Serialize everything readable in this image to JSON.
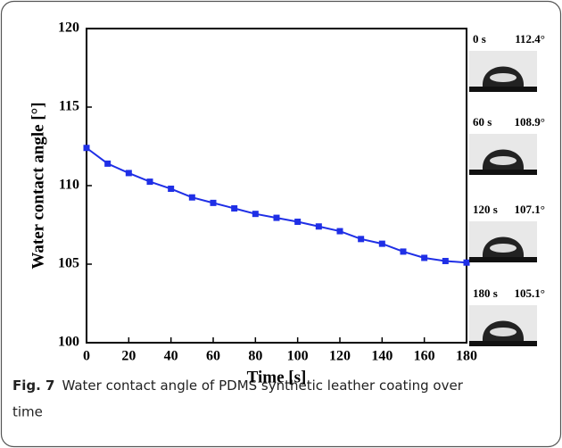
{
  "chart_data": {
    "type": "line",
    "x": [
      0,
      10,
      20,
      30,
      40,
      50,
      60,
      70,
      80,
      90,
      100,
      110,
      120,
      130,
      140,
      150,
      160,
      170,
      180
    ],
    "series": [
      {
        "color": "#1f2fe6",
        "values": [
          112.4,
          111.4,
          110.8,
          110.25,
          109.8,
          109.25,
          108.9,
          108.55,
          108.2,
          107.95,
          107.7,
          107.4,
          107.1,
          106.6,
          106.3,
          105.8,
          105.4,
          105.2,
          105.1
        ]
      }
    ],
    "xlim": [
      0,
      180
    ],
    "xticks": [
      0,
      20,
      40,
      60,
      80,
      100,
      120,
      140,
      160,
      180
    ],
    "ylim": [
      100,
      120
    ],
    "yticks": [
      100,
      105,
      110,
      115,
      120
    ],
    "xlabel": "Time [s]",
    "ylabel": "Water contact angle [°]",
    "insets": [
      {
        "time": "0 s",
        "angle": "112.4°"
      },
      {
        "time": "60 s",
        "angle": "108.9°"
      },
      {
        "time": "120 s",
        "angle": "107.1°"
      },
      {
        "time": "180 s",
        "angle": "105.1°"
      }
    ]
  },
  "caption": {
    "label": "Fig. 7",
    "text": "Water contact angle of PDMS synthetic leather coating over time"
  }
}
